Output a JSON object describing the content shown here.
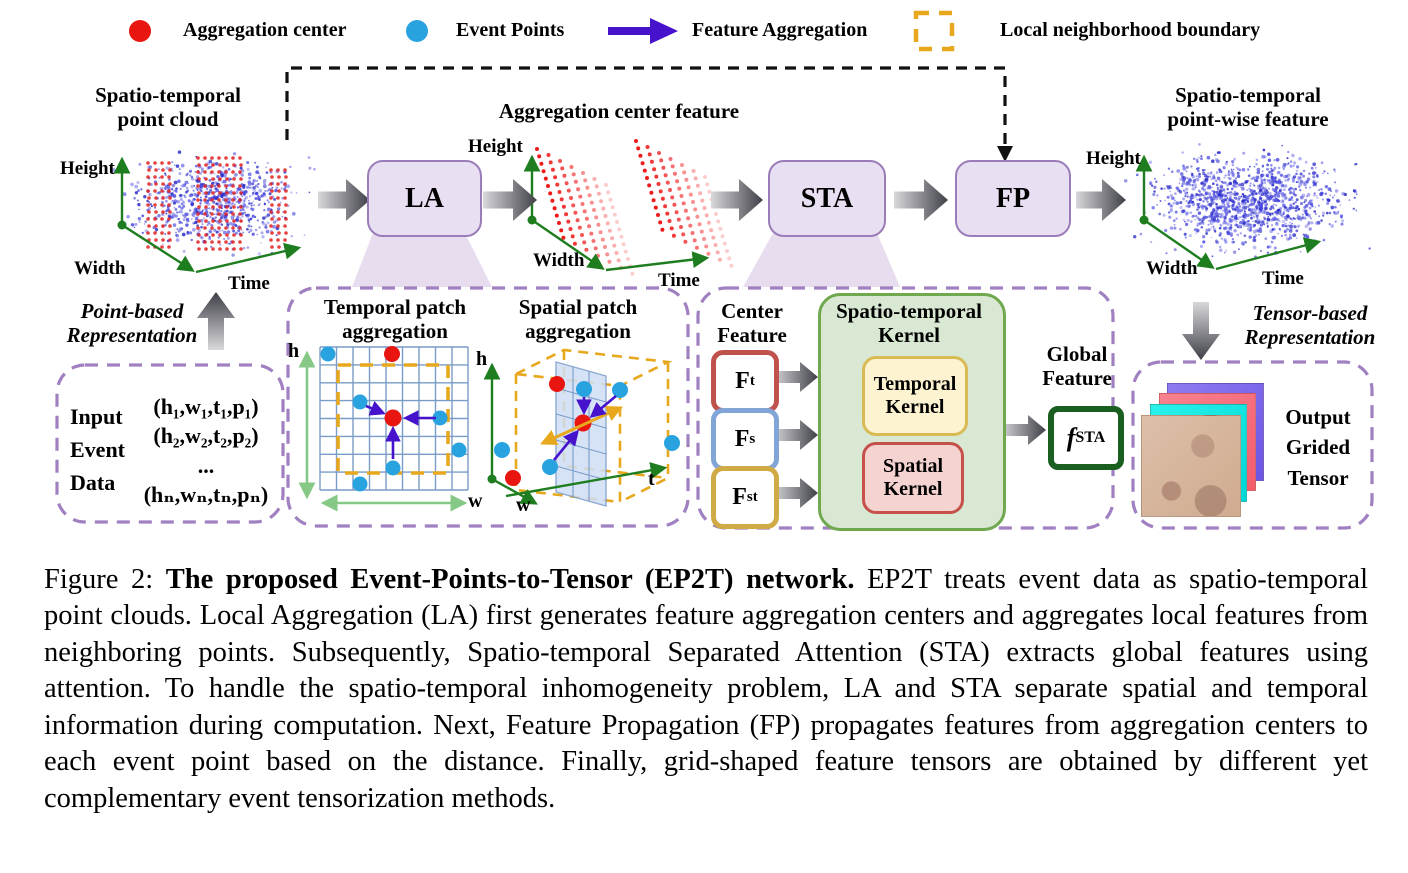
{
  "legend": {
    "items": [
      {
        "label": "Aggregation center",
        "symbol": "red-dot"
      },
      {
        "label": "Event Points",
        "symbol": "blue-dot"
      },
      {
        "label": "Feature Aggregation",
        "symbol": "purple-arrow"
      },
      {
        "label": "Local neighborhood boundary",
        "symbol": "orange-dashed-box"
      }
    ]
  },
  "stages": {
    "la": "LA",
    "sta": "STA",
    "fp": "FP"
  },
  "titles": {
    "input_cloud_l1": "Spatio-temporal",
    "input_cloud_l2": "point cloud",
    "agg_feature": "Aggregation center feature",
    "output_cloud_l1": "Spatio-temporal",
    "output_cloud_l2": "point-wise feature"
  },
  "axes": {
    "height": "Height",
    "width": "Width",
    "time": "Time",
    "h": "h",
    "w": "w",
    "t": "t"
  },
  "point_based": {
    "l1": "Point-based",
    "l2": "Representation"
  },
  "tensor_based": {
    "l1": "Tensor-based",
    "l2": "Representation"
  },
  "input_box": {
    "l1": "Input",
    "l2": "Event",
    "l3": "Data",
    "rows": [
      "(h₁,w₁,t₁,p₁)",
      "(h₂,w₂,t₂,p₂)",
      "...",
      "(hₙ,wₙ,tₙ,pₙ)"
    ]
  },
  "la_inset": {
    "temporal_l1": "Temporal patch",
    "temporal_l2": "aggregation",
    "spatial_l1": "Spatial patch",
    "spatial_l2": "aggregation"
  },
  "sta_inset": {
    "center_l1": "Center",
    "center_l2": "Feature",
    "kernel_l1": "Spatio-temporal",
    "kernel_l2": "Kernel",
    "temporal_l1": "Temporal",
    "temporal_l2": "Kernel",
    "spatial_l1": "Spatial",
    "spatial_l2": "Kernel",
    "global_l1": "Global",
    "global_l2": "Feature",
    "f_main": "f",
    "f_sub": "STA",
    "features": [
      {
        "main": "F",
        "sub": "t"
      },
      {
        "main": "F",
        "sub": "s"
      },
      {
        "main": "F",
        "sub": "st"
      }
    ]
  },
  "output_box": {
    "l1": "Output",
    "l2": "Grided",
    "l3": "Tensor"
  },
  "caption": {
    "figure_label": "Figure 2: ",
    "bold_title": "The proposed Event-Points-to-Tensor (EP2T) network.",
    "body": " EP2T treats event data as spatio-temporal point clouds. Local Aggregation (LA) first generates feature aggregation centers and aggregates local features from neighboring points. Subsequently, Spatio-temporal Separated Attention (STA) extracts global features using attention. To handle the spatio-temporal inhomogeneity problem, LA and STA separate spatial and temporal information during computation. Next, Feature Propagation (FP) propagates features from aggregation centers to each event point based on the distance. Finally, grid-shaped feature tensors are obtained by different yet complementary event tensorization methods."
  },
  "colors": {
    "aggregation_center": "#e81510",
    "event_points": "#29a3e0",
    "feature_aggregation": "#4612cc",
    "neighborhood_boundary": "#e8a81e",
    "stage_fill": "#e9dff2",
    "stage_border": "#9a7cb8",
    "inset_dash": "#a080c0",
    "axis_green": "#1e7d1e",
    "kernel_green_fill": "#d9e8d2",
    "kernel_green_border": "#70a84f",
    "temporal_kernel_fill": "#fdf3d0",
    "temporal_kernel_border": "#d9bb55",
    "spatial_kernel_fill": "#f5d3d1",
    "spatial_kernel_border": "#c4524a",
    "ft_border": "#c0524e",
    "fs_border": "#82a5d8",
    "fst_border": "#d0ab45",
    "fsta_border": "#1a5e20"
  }
}
